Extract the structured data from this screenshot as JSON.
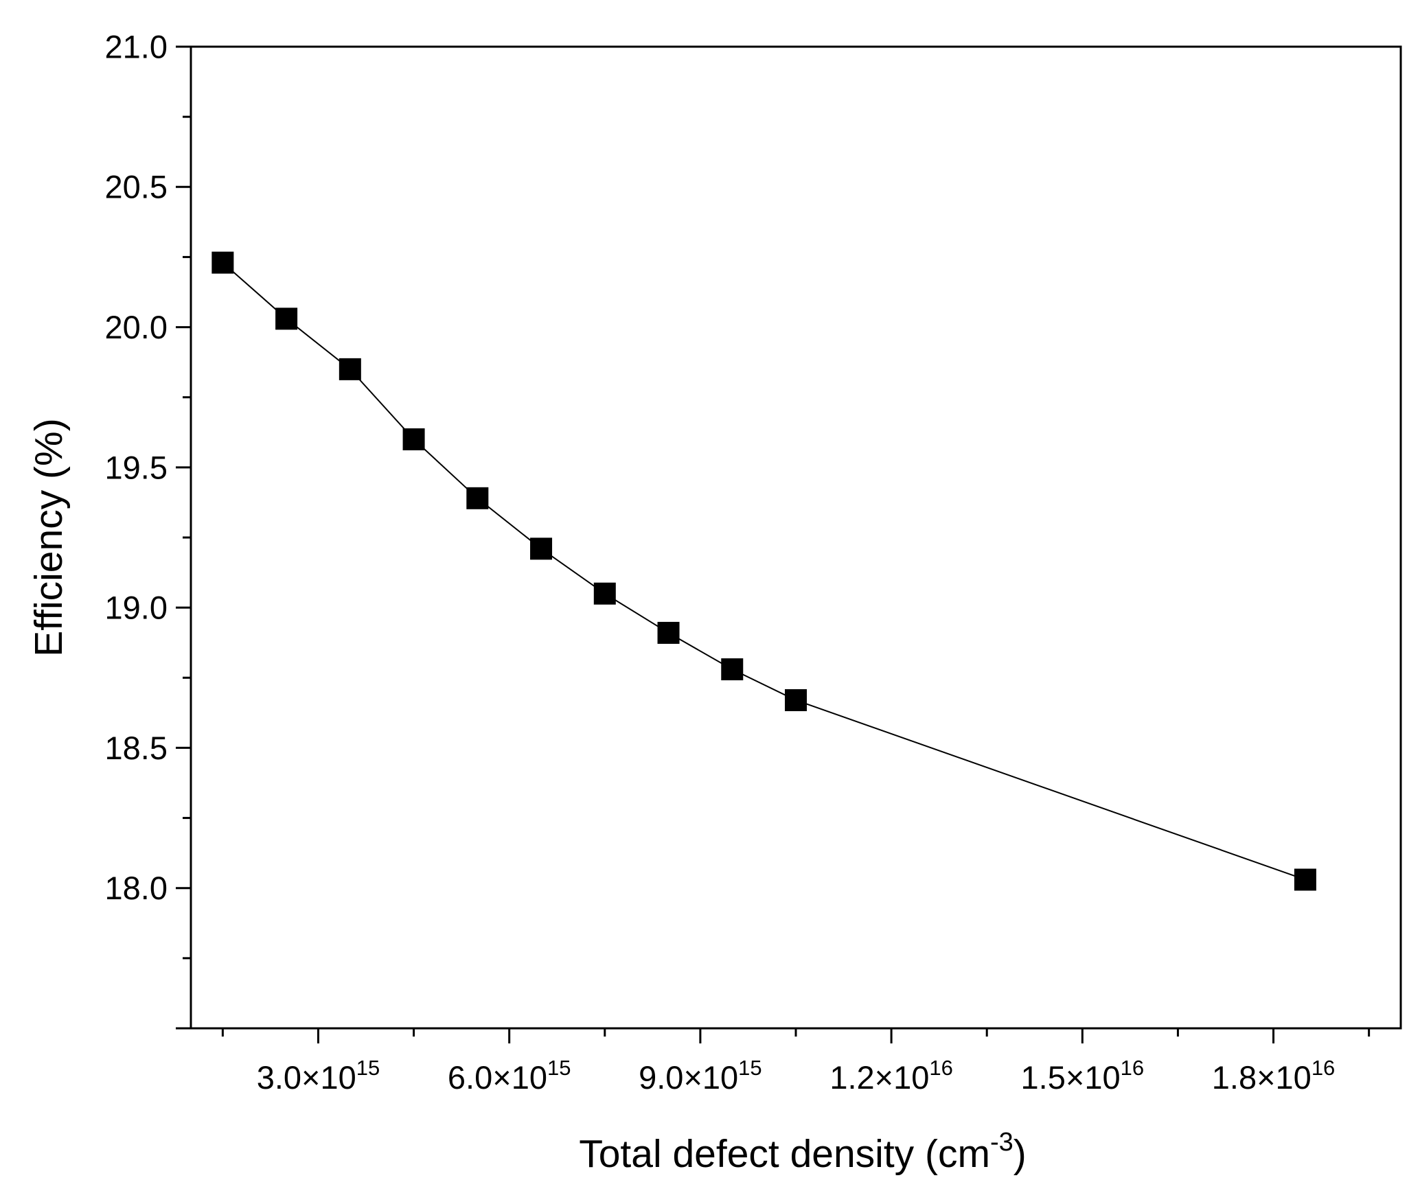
{
  "chart_data": {
    "type": "scatter",
    "title": "",
    "xlabel": {
      "text": "Total defect density (cm",
      "sup": "-3",
      "suffix": ")"
    },
    "ylabel": "Efficiency (%)",
    "xlim": [
      1000000000000000.0,
      2e+16
    ],
    "ylim": [
      17.5,
      21.0
    ],
    "x_ticks": [
      {
        "value": 3000000000000000.0,
        "mantissa": "3.0×10",
        "exp": "15"
      },
      {
        "value": 6000000000000000.0,
        "mantissa": "6.0×10",
        "exp": "15"
      },
      {
        "value": 9000000000000000.0,
        "mantissa": "9.0×10",
        "exp": "15"
      },
      {
        "value": 1.2e+16,
        "mantissa": "1.2×10",
        "exp": "16"
      },
      {
        "value": 1.5e+16,
        "mantissa": "1.5×10",
        "exp": "16"
      },
      {
        "value": 1.8e+16,
        "mantissa": "1.8×10",
        "exp": "16"
      }
    ],
    "y_ticks": [
      {
        "value": 18.0,
        "label": "18.0"
      },
      {
        "value": 18.5,
        "label": "18.5"
      },
      {
        "value": 19.0,
        "label": "19.0"
      },
      {
        "value": 19.5,
        "label": "19.5"
      },
      {
        "value": 20.0,
        "label": "20.0"
      },
      {
        "value": 20.5,
        "label": "20.5"
      },
      {
        "value": 21.0,
        "label": "21.0"
      }
    ],
    "grid": false,
    "legend": "none",
    "series": [
      {
        "marker": "square",
        "line": true,
        "color": "#000000",
        "x": [
          1500000000000000.0,
          2500000000000000.0,
          3500000000000000.0,
          4500000000000000.0,
          5500000000000000.0,
          6500000000000000.0,
          7500000000000000.0,
          8500000000000000.0,
          9500000000000000.0,
          1.05e+16,
          1.85e+16
        ],
        "y": [
          20.23,
          20.03,
          19.85,
          19.6,
          19.39,
          19.21,
          19.05,
          18.91,
          18.78,
          18.67,
          18.03
        ]
      }
    ]
  }
}
